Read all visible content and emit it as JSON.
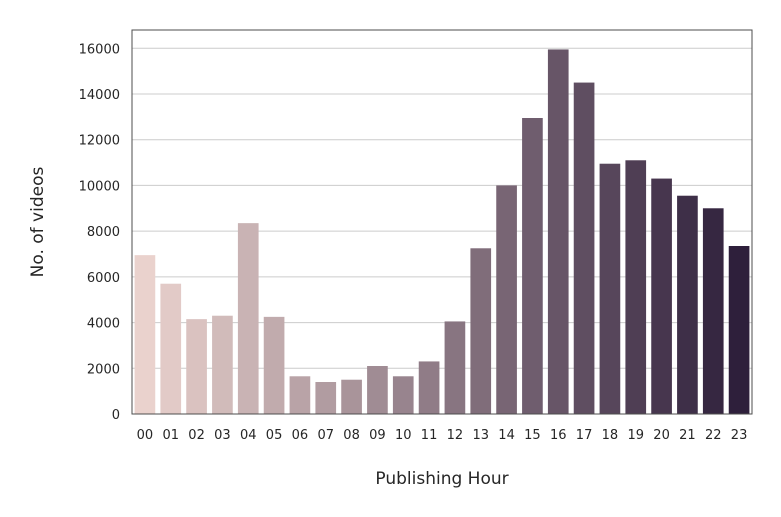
{
  "chart_data": {
    "type": "bar",
    "title": "",
    "xlabel": "Publishing Hour",
    "ylabel": "No. of videos",
    "categories": [
      "00",
      "01",
      "02",
      "03",
      "04",
      "05",
      "06",
      "07",
      "08",
      "09",
      "10",
      "11",
      "12",
      "13",
      "14",
      "15",
      "16",
      "17",
      "18",
      "19",
      "20",
      "21",
      "22",
      "23"
    ],
    "values": [
      6950,
      5700,
      4150,
      4300,
      8350,
      4250,
      1650,
      1400,
      1500,
      2100,
      1650,
      2300,
      4050,
      7250,
      10000,
      12950,
      15950,
      14500,
      10950,
      11100,
      10300,
      9550,
      9000,
      7350
    ],
    "ylim": [
      0,
      16800
    ],
    "yticks": [
      0,
      2000,
      4000,
      6000,
      8000,
      10000,
      12000,
      14000,
      16000
    ],
    "grid": "horizontal",
    "palette": {
      "start": "#ead2cd",
      "end": "#2e1f3b"
    }
  }
}
